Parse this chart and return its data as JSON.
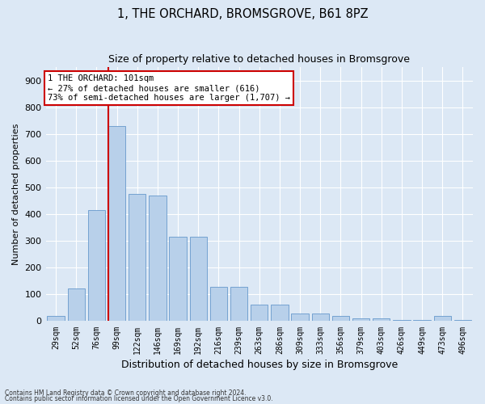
{
  "title": "1, THE ORCHARD, BROMSGROVE, B61 8PZ",
  "subtitle": "Size of property relative to detached houses in Bromsgrove",
  "xlabel": "Distribution of detached houses by size in Bromsgrove",
  "ylabel": "Number of detached properties",
  "categories": [
    "29sqm",
    "52sqm",
    "76sqm",
    "99sqm",
    "122sqm",
    "146sqm",
    "169sqm",
    "192sqm",
    "216sqm",
    "239sqm",
    "263sqm",
    "286sqm",
    "309sqm",
    "333sqm",
    "356sqm",
    "379sqm",
    "403sqm",
    "426sqm",
    "449sqm",
    "473sqm",
    "496sqm"
  ],
  "values": [
    18,
    122,
    415,
    730,
    475,
    470,
    315,
    315,
    128,
    128,
    63,
    63,
    28,
    28,
    18,
    10,
    10,
    5,
    5,
    18,
    5
  ],
  "bar_color": "#b8d0ea",
  "bar_edge_color": "#6699cc",
  "vline_color": "#cc0000",
  "vline_bar_index": 3,
  "annotation_line1": "1 THE ORCHARD: 101sqm",
  "annotation_line2": "← 27% of detached houses are smaller (616)",
  "annotation_line3": "73% of semi-detached houses are larger (1,707) →",
  "annotation_box_color": "#ffffff",
  "annotation_box_edge": "#cc0000",
  "background_color": "#dce8f5",
  "footer1": "Contains HM Land Registry data © Crown copyright and database right 2024.",
  "footer2": "Contains public sector information licensed under the Open Government Licence v3.0.",
  "ylim_max": 950,
  "yticks": [
    0,
    100,
    200,
    300,
    400,
    500,
    600,
    700,
    800,
    900
  ],
  "title_fontsize": 10.5,
  "subtitle_fontsize": 9,
  "tick_fontsize": 7,
  "ylabel_fontsize": 8,
  "xlabel_fontsize": 9,
  "annotation_fontsize": 7.5
}
